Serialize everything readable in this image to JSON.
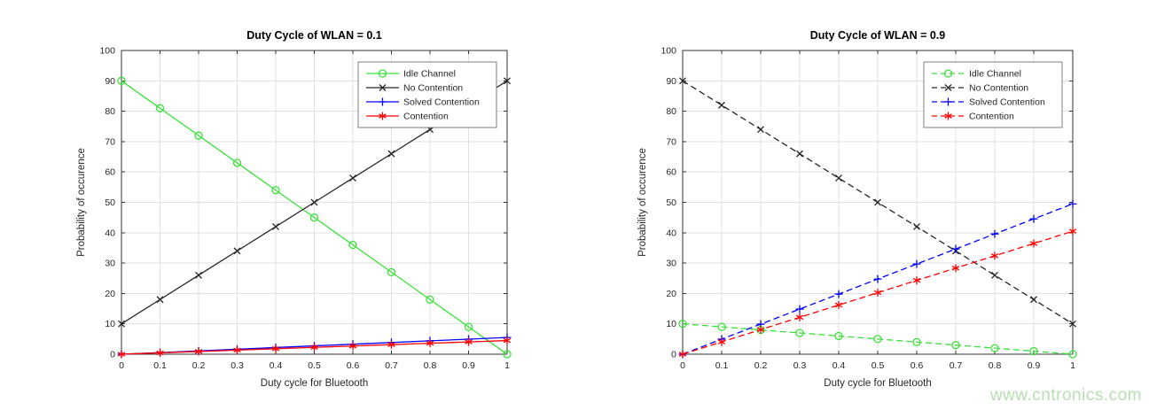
{
  "figure": {
    "background": "#ffffff",
    "axis_color": "#333333",
    "grid_color": "#e0e0e0",
    "text_color": "#262626",
    "legend_border_color": "#7f7f7f"
  },
  "watermark": {
    "text": "www.cntronics.com",
    "color": "#b7dfb2"
  },
  "chart_data": [
    {
      "type": "line",
      "title": "Duty Cycle of WLAN = 0.1",
      "xlabel": "Duty cycle for Bluetooth",
      "ylabel": "Probability of occurence",
      "xlim": [
        0,
        1
      ],
      "ylim": [
        0,
        100
      ],
      "xticks": [
        0,
        0.1,
        0.2,
        0.3,
        0.4,
        0.5,
        0.6,
        0.7,
        0.8,
        0.9,
        1
      ],
      "xtick_labels": [
        "0",
        "0.1",
        "0.2",
        "0.3",
        "0.4",
        "0.5",
        "0.6",
        "0.7",
        "0.8",
        "0.9",
        "1"
      ],
      "yticks": [
        0,
        10,
        20,
        30,
        40,
        50,
        60,
        70,
        80,
        90,
        100
      ],
      "ytick_labels": [
        "0",
        "10",
        "20",
        "30",
        "40",
        "50",
        "60",
        "70",
        "80",
        "90",
        "100"
      ],
      "grid": true,
      "line_style": "solid",
      "legend_position": "top-right",
      "x": [
        0,
        0.1,
        0.2,
        0.3,
        0.4,
        0.5,
        0.6,
        0.7,
        0.8,
        0.9,
        1
      ],
      "series": [
        {
          "name": "Idle Channel",
          "color": "#3ae13a",
          "marker": "circle",
          "values": [
            90,
            81,
            72,
            63,
            54,
            45,
            36,
            27,
            18,
            9,
            0
          ]
        },
        {
          "name": "No Contention",
          "color": "#262626",
          "marker": "x",
          "values": [
            10,
            18,
            26,
            34,
            42,
            50,
            58,
            66,
            74,
            82,
            90
          ]
        },
        {
          "name": "Solved Contention",
          "color": "#0000ff",
          "marker": "plus",
          "values": [
            0,
            0.55,
            1.1,
            1.65,
            2.2,
            2.75,
            3.3,
            3.85,
            4.4,
            4.95,
            5.5
          ]
        },
        {
          "name": "Contention",
          "color": "#ff0000",
          "marker": "asterisk",
          "values": [
            0,
            0.45,
            0.9,
            1.35,
            1.8,
            2.25,
            2.7,
            3.15,
            3.6,
            4.05,
            4.5
          ]
        }
      ]
    },
    {
      "type": "line",
      "title": "Duty Cycle of WLAN = 0.9",
      "xlabel": "Duty cycle for Bluetooth",
      "ylabel": "Probability of occurence",
      "xlim": [
        0,
        1
      ],
      "ylim": [
        0,
        100
      ],
      "xticks": [
        0,
        0.1,
        0.2,
        0.3,
        0.4,
        0.5,
        0.6,
        0.7,
        0.8,
        0.9,
        1
      ],
      "xtick_labels": [
        "0",
        "0.1",
        "0.2",
        "0.3",
        "0.4",
        "0.5",
        "0.6",
        "0.7",
        "0.8",
        "0.9",
        "1"
      ],
      "yticks": [
        0,
        10,
        20,
        30,
        40,
        50,
        60,
        70,
        80,
        90,
        100
      ],
      "ytick_labels": [
        "0",
        "10",
        "20",
        "30",
        "40",
        "50",
        "60",
        "70",
        "80",
        "90",
        "100"
      ],
      "grid": true,
      "line_style": "dashed",
      "legend_position": "top-right",
      "x": [
        0,
        0.1,
        0.2,
        0.3,
        0.4,
        0.5,
        0.6,
        0.7,
        0.8,
        0.9,
        1
      ],
      "series": [
        {
          "name": "Idle Channel",
          "color": "#3ae13a",
          "marker": "circle",
          "values": [
            10,
            9,
            8,
            7,
            6,
            5,
            4,
            3,
            2,
            1,
            0
          ]
        },
        {
          "name": "No Contention",
          "color": "#262626",
          "marker": "x",
          "values": [
            90,
            82,
            74,
            66,
            58,
            50,
            42,
            34,
            26,
            18,
            10
          ]
        },
        {
          "name": "Solved Contention",
          "color": "#0000ff",
          "marker": "plus",
          "values": [
            0,
            4.95,
            9.9,
            14.85,
            19.8,
            24.75,
            29.7,
            34.65,
            39.6,
            44.55,
            49.5
          ]
        },
        {
          "name": "Contention",
          "color": "#ff0000",
          "marker": "asterisk",
          "values": [
            0,
            4.05,
            8.1,
            12.15,
            16.2,
            20.25,
            24.3,
            28.35,
            32.4,
            36.45,
            40.5
          ]
        }
      ]
    }
  ]
}
